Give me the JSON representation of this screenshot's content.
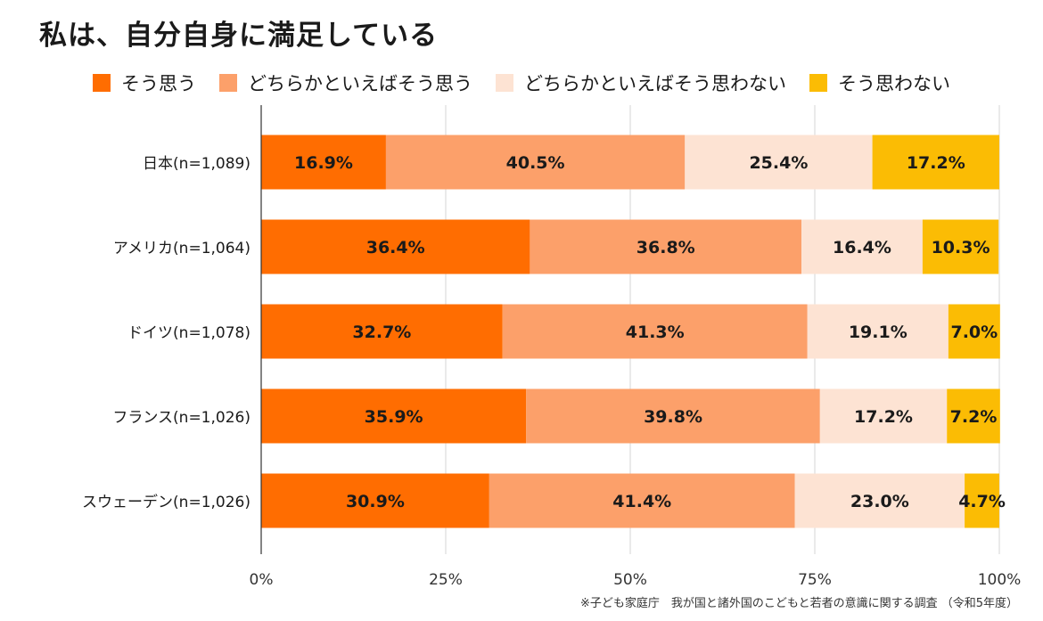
{
  "title": "私は、自分自身に満足している",
  "source": "※子ども家庭庁　我が国と諸外国のこどもと若者の意識に関する調査 （令和5年度）",
  "chart_data": {
    "type": "bar",
    "orientation": "horizontal",
    "stacked": true,
    "categories": [
      "日本(n=1,089)",
      "アメリカ(n=1,064)",
      "ドイツ(n=1,078)",
      "フランス(n=1,026)",
      "スウェーデン(n=1,026)"
    ],
    "series": [
      {
        "name": "そう思う",
        "color": "#ff6d01",
        "values": [
          16.9,
          36.4,
          32.7,
          35.9,
          30.9
        ],
        "labels": [
          "16.9%",
          "36.4%",
          "32.7%",
          "35.9%",
          "30.9%"
        ]
      },
      {
        "name": "どちらかといえばそう思う",
        "color": "#fca06a",
        "values": [
          40.5,
          36.8,
          41.3,
          39.8,
          41.4
        ],
        "labels": [
          "40.5%",
          "36.8%",
          "41.3%",
          "39.8%",
          "41.4%"
        ]
      },
      {
        "name": "どちらかといえばそう思わない",
        "color": "#fde3d3",
        "values": [
          25.4,
          16.4,
          19.1,
          17.2,
          23.0
        ],
        "labels": [
          "25.4%",
          "16.4%",
          "19.1%",
          "17.2%",
          "23.0%"
        ]
      },
      {
        "name": "そう思わない",
        "color": "#fbbc04",
        "values": [
          17.2,
          10.3,
          7.0,
          7.2,
          4.7
        ],
        "labels": [
          "17.2%",
          "10.3%",
          "7.0%",
          "7.2%",
          "4.7%"
        ]
      }
    ],
    "xlim": [
      0,
      100
    ],
    "xticks": [
      "0%",
      "25%",
      "50%",
      "75%",
      "100%"
    ],
    "grid": true,
    "legend": "top"
  }
}
